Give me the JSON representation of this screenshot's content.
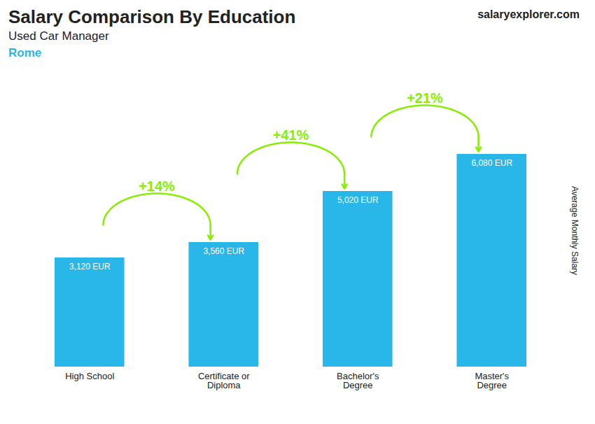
{
  "chart_data": {
    "type": "bar",
    "title": "Salary Comparison By Education",
    "subtitle": "Used Car Manager",
    "city": "Rome",
    "brand": "salaryexplorer.com",
    "ylabel": "Average Monthly Salary",
    "categories": [
      "High School",
      "Certificate or\nDiploma",
      "Bachelor's\nDegree",
      "Master's\nDegree"
    ],
    "values": [
      3120,
      3560,
      5020,
      6080
    ],
    "value_labels": [
      "3,120 EUR",
      "3,560 EUR",
      "5,020 EUR",
      "6,080 EUR"
    ],
    "data_labels": true,
    "color": "#29b6e8",
    "annotations": [
      {
        "text": "+14%",
        "color": "#88ee00"
      },
      {
        "text": "+41%",
        "color": "#88ee00"
      },
      {
        "text": "+21%",
        "color": "#88ee00"
      }
    ],
    "ylim": [
      0,
      7800
    ],
    "tick_labels": "x",
    "grid": false
  }
}
